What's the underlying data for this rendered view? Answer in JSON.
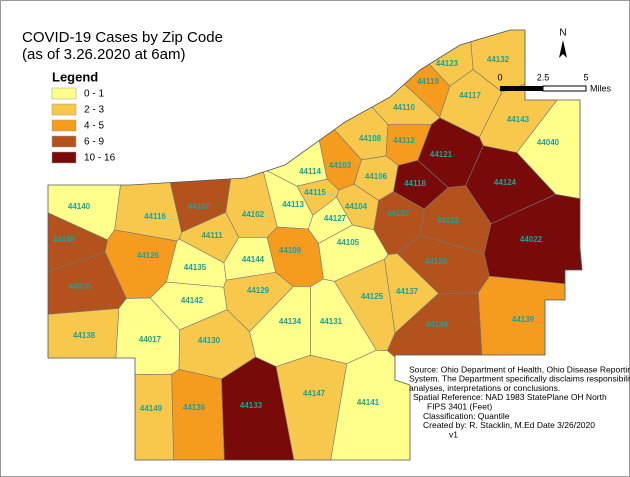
{
  "title": [
    "COVID-19 Cases by Zip Code",
    "(as of 3.26.2020 at 6am)"
  ],
  "legend": {
    "title": "Legend",
    "items": [
      {
        "label": "0 - 1",
        "color": "#ffff8c"
      },
      {
        "label": "2 - 3",
        "color": "#f7c84c"
      },
      {
        "label": "4 - 5",
        "color": "#f59c1e"
      },
      {
        "label": "6 - 9",
        "color": "#b4521e"
      },
      {
        "label": "10 - 16",
        "color": "#780a0a"
      }
    ]
  },
  "north": "N",
  "scale": {
    "ticks": [
      "0",
      "2.5",
      "5"
    ],
    "unit": "Miles"
  },
  "source": [
    "Source: Ohio Department of Health, Ohio Disease Reporting",
    "System. The Department specifically disclaims responsibility for",
    "analyses, interpretations or conclusions.",
    "Spatial Reference: NAD 1983 StatePlane OH North",
    "FIPS 3401 (Feet)",
    "Classification: Quantile",
    "Created by: R. Stacklin, M.Ed  Date 3/26/2020",
    "v1"
  ],
  "regions": [
    {
      "label": "44123",
      "color": "#f7c84c"
    },
    {
      "label": "44132",
      "color": "#f7c84c"
    },
    {
      "label": "44119",
      "color": "#f59c1e"
    },
    {
      "label": "44117",
      "color": "#f7c84c"
    },
    {
      "label": "44110",
      "color": "#f7c84c"
    },
    {
      "label": "44143",
      "color": "#f7c84c"
    },
    {
      "label": "44108",
      "color": "#f7c84c"
    },
    {
      "label": "44112",
      "color": "#f59c1e"
    },
    {
      "label": "44121",
      "color": "#780a0a"
    },
    {
      "label": "44040",
      "color": "#ffff8c"
    },
    {
      "label": "44103",
      "color": "#f59c1e"
    },
    {
      "label": "44114",
      "color": "#ffff8c"
    },
    {
      "label": "44106",
      "color": "#f7c84c"
    },
    {
      "label": "44118",
      "color": "#780a0a"
    },
    {
      "label": "44124",
      "color": "#780a0a"
    },
    {
      "label": "44115",
      "color": "#f7c84c"
    },
    {
      "label": "44140",
      "color": "#ffff8c"
    },
    {
      "label": "44116",
      "color": "#f7c84c"
    },
    {
      "label": "44107",
      "color": "#b4521e"
    },
    {
      "label": "44102",
      "color": "#f7c84c"
    },
    {
      "label": "44113",
      "color": "#ffff8c"
    },
    {
      "label": "44104",
      "color": "#f7c84c"
    },
    {
      "label": "44127",
      "color": "#ffff8c"
    },
    {
      "label": "44120",
      "color": "#b4521e"
    },
    {
      "label": "44122",
      "color": "#b4521e"
    },
    {
      "label": "44022",
      "color": "#780a0a"
    },
    {
      "label": "44145",
      "color": "#b4521e"
    },
    {
      "label": "44111",
      "color": "#f7c84c"
    },
    {
      "label": "44105",
      "color": "#ffff8c"
    },
    {
      "label": "44109",
      "color": "#f59c1e"
    },
    {
      "label": "44126",
      "color": "#f59c1e"
    },
    {
      "label": "44144",
      "color": "#ffff8c"
    },
    {
      "label": "44135",
      "color": "#ffff8c"
    },
    {
      "label": "44128",
      "color": "#b4521e"
    },
    {
      "label": "44070",
      "color": "#b4521e"
    },
    {
      "label": "44137",
      "color": "#f7c84c"
    },
    {
      "label": "44129",
      "color": "#f7c84c"
    },
    {
      "label": "44142",
      "color": "#ffff8c"
    },
    {
      "label": "44125",
      "color": "#f7c84c"
    },
    {
      "label": "44139",
      "color": "#f59c1e"
    },
    {
      "label": "44134",
      "color": "#ffff8c"
    },
    {
      "label": "44131",
      "color": "#ffff8c"
    },
    {
      "label": "44146",
      "color": "#b4521e"
    },
    {
      "label": "44017",
      "color": "#ffff8c"
    },
    {
      "label": "44130",
      "color": "#f7c84c"
    },
    {
      "label": "44138",
      "color": "#f7c84c"
    },
    {
      "label": "44149",
      "color": "#f7c84c"
    },
    {
      "label": "44136",
      "color": "#f59c1e"
    },
    {
      "label": "44133",
      "color": "#780a0a"
    },
    {
      "label": "44147",
      "color": "#f7c84c"
    },
    {
      "label": "44141",
      "color": "#ffff8c"
    }
  ]
}
